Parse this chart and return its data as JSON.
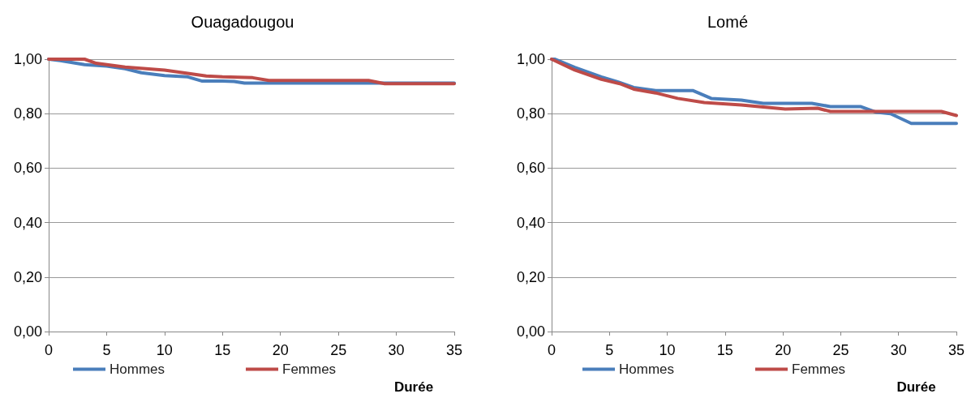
{
  "chart_data": [
    {
      "type": "line",
      "title": "Ouagadougou",
      "xlabel": "Durée",
      "xlim": [
        0,
        35
      ],
      "xticks": [
        0,
        5,
        10,
        15,
        20,
        25,
        30,
        35
      ],
      "ylim": [
        0,
        1
      ],
      "yticks": [
        {
          "value": 0,
          "label": "0,00"
        },
        {
          "value": 0.2,
          "label": "0,20"
        },
        {
          "value": 0.4,
          "label": "0,40"
        },
        {
          "value": 0.6,
          "label": "0,60"
        },
        {
          "value": 0.8,
          "label": "0,80"
        },
        {
          "value": 1,
          "label": "1,00"
        }
      ],
      "grid": "y",
      "legend": "bottom",
      "marker": "none",
      "line_style": "solid",
      "series": [
        {
          "name": "Hommes",
          "color": "#4a7ebb",
          "x": [
            0,
            1,
            3.1,
            5,
            6.6,
            8,
            10,
            12,
            13.2,
            15,
            16,
            16.9,
            20,
            25,
            30,
            35
          ],
          "values": [
            1,
            0.995,
            0.98,
            0.975,
            0.965,
            0.95,
            0.94,
            0.935,
            0.92,
            0.92,
            0.918,
            0.912,
            0.912,
            0.912,
            0.912,
            0.912
          ]
        },
        {
          "name": "Femmes",
          "color": "#be4b48",
          "x": [
            0,
            3.1,
            4.1,
            6.6,
            10,
            12,
            13.6,
            15,
            17.6,
            19,
            22,
            25,
            27.6,
            29,
            35
          ],
          "values": [
            1,
            1,
            0.985,
            0.971,
            0.96,
            0.948,
            0.938,
            0.935,
            0.932,
            0.922,
            0.922,
            0.922,
            0.922,
            0.91,
            0.91
          ]
        }
      ]
    },
    {
      "type": "line",
      "title": "Lomé",
      "xlabel": "Durée",
      "xlim": [
        0,
        35
      ],
      "xticks": [
        0,
        5,
        10,
        15,
        20,
        25,
        30,
        35
      ],
      "ylim": [
        0,
        1
      ],
      "yticks": [
        {
          "value": 0,
          "label": "0,00"
        },
        {
          "value": 0.2,
          "label": "0,20"
        },
        {
          "value": 0.4,
          "label": "0,40"
        },
        {
          "value": 0.6,
          "label": "0,60"
        },
        {
          "value": 0.8,
          "label": "0,80"
        },
        {
          "value": 1,
          "label": "1,00"
        }
      ],
      "grid": "y",
      "legend": "bottom",
      "marker": "none",
      "line_style": "solid",
      "series": [
        {
          "name": "Hommes",
          "color": "#4a7ebb",
          "x": [
            0,
            0.3,
            2,
            4.3,
            5.7,
            7.1,
            9,
            12.2,
            13.8,
            16.4,
            18.3,
            22.5,
            24.1,
            26.7,
            28.1,
            29.3,
            31.1,
            35
          ],
          "values": [
            1,
            1,
            0.97,
            0.935,
            0.917,
            0.896,
            0.885,
            0.885,
            0.856,
            0.85,
            0.838,
            0.838,
            0.826,
            0.826,
            0.805,
            0.8,
            0.764,
            0.764
          ]
        },
        {
          "name": "Femmes",
          "color": "#be4b48",
          "x": [
            0,
            2,
            4.3,
            5.9,
            7.1,
            9,
            10.9,
            13.2,
            16.4,
            20.2,
            23,
            24.1,
            30,
            33.7,
            35
          ],
          "values": [
            1,
            0.96,
            0.926,
            0.91,
            0.89,
            0.876,
            0.856,
            0.841,
            0.832,
            0.817,
            0.82,
            0.808,
            0.808,
            0.808,
            0.793
          ]
        }
      ]
    }
  ]
}
